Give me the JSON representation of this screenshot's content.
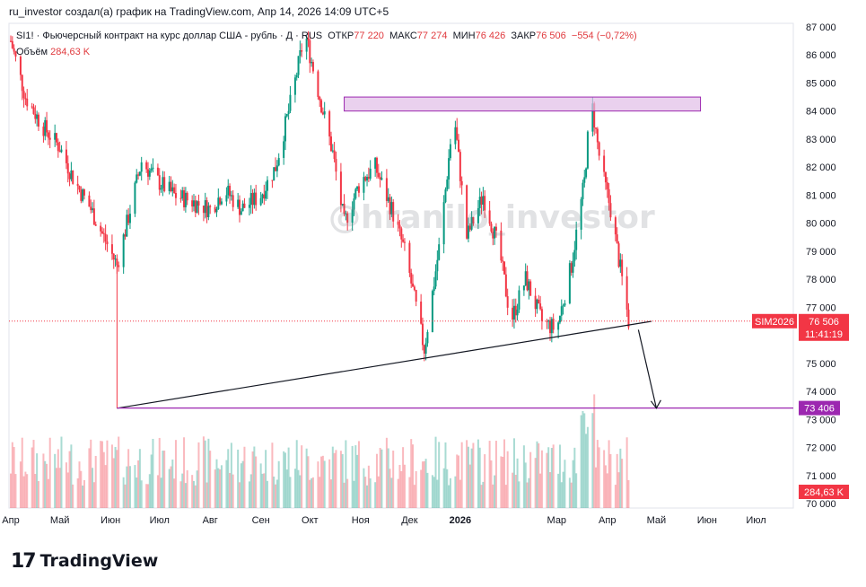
{
  "caption": "ru_investor создал(а) график на TradingView.com, Апр 14, 2026 14:09 UTC+5",
  "legend": {
    "symbol": "SI1! · Фьючерсный контракт на курс доллар США - рубль · Д · RUS",
    "open_label": "ОТКР",
    "open": "77 220",
    "high_label": "МАКС",
    "high": "77 274",
    "low_label": "МИН",
    "low": "76 426",
    "close_label": "ЗАКР",
    "close": "76 506",
    "change": "−554 (−0,72%)"
  },
  "volume_legend": {
    "label": "Объём",
    "value": "284,63 K"
  },
  "watermark": "@hranilo_investor",
  "footer_brand": "TradingView",
  "price_tags": {
    "contract": "SIM2026",
    "last_price": "76 506",
    "countdown": "11:41:19",
    "target_price": "73 406",
    "volume": "284,63 K"
  },
  "colors": {
    "up": "#089981",
    "down": "#f23645",
    "resistance_zone": "#e1bee7",
    "zone_border": "#9c27b0",
    "target_line": "#9c27b0",
    "trend_line": "#131722",
    "tag_red": "#f23645",
    "tag_purple": "#9c27b0"
  },
  "chart_data": {
    "type": "candlestick",
    "y_axis": {
      "min": 70000,
      "max": 87000,
      "ticks": [
        "87 000",
        "86 000",
        "85 000",
        "84 000",
        "83 000",
        "82 000",
        "81 000",
        "80 000",
        "79 000",
        "78 000",
        "77 000",
        "76 000",
        "75 000",
        "74 000",
        "73 000",
        "72 000",
        "71 000",
        "70 000"
      ]
    },
    "x_axis": {
      "labels": [
        "Апр",
        "Май",
        "Июн",
        "Июл",
        "Авг",
        "Сен",
        "Окт",
        "Ноя",
        "Дек",
        "2026",
        "Мар",
        "Апр",
        "Май",
        "Июн",
        "Июл"
      ]
    },
    "close_path": [
      [
        "2025-04-01",
        86500
      ],
      [
        "2025-04-10",
        84500
      ],
      [
        "2025-04-20",
        83500
      ],
      [
        "2025-05-01",
        82700
      ],
      [
        "2025-05-10",
        81500
      ],
      [
        "2025-05-20",
        80500
      ],
      [
        "2025-05-28",
        79500
      ],
      [
        "2025-06-05",
        78500
      ],
      [
        "2025-06-20",
        82200
      ],
      [
        "2025-06-30",
        81500
      ],
      [
        "2025-07-10",
        81000
      ],
      [
        "2025-07-20",
        80800
      ],
      [
        "2025-08-01",
        80500
      ],
      [
        "2025-08-10",
        81200
      ],
      [
        "2025-08-20",
        80500
      ],
      [
        "2025-09-01",
        81000
      ],
      [
        "2025-09-10",
        82000
      ],
      [
        "2025-09-20",
        84500
      ],
      [
        "2025-09-28",
        86800
      ],
      [
        "2025-10-05",
        85000
      ],
      [
        "2025-10-15",
        82500
      ],
      [
        "2025-10-22",
        80000
      ],
      [
        "2025-11-01",
        81500
      ],
      [
        "2025-11-10",
        82000
      ],
      [
        "2025-11-20",
        80500
      ],
      [
        "2025-11-28",
        79000
      ],
      [
        "2025-12-05",
        77000
      ],
      [
        "2025-12-10",
        75500
      ],
      [
        "2025-12-20",
        79500
      ],
      [
        "2025-12-28",
        84000
      ],
      [
        "2026-01-05",
        79500
      ],
      [
        "2026-01-15",
        81000
      ],
      [
        "2026-01-25",
        79000
      ],
      [
        "2026-02-01",
        76500
      ],
      [
        "2026-02-10",
        78000
      ],
      [
        "2026-02-20",
        76500
      ],
      [
        "2026-03-01",
        76200
      ],
      [
        "2026-03-10",
        78500
      ],
      [
        "2026-03-18",
        81500
      ],
      [
        "2026-03-22",
        84500
      ],
      [
        "2026-03-28",
        82000
      ],
      [
        "2026-04-03",
        80500
      ],
      [
        "2026-04-10",
        78000
      ],
      [
        "2026-04-14",
        76506
      ]
    ],
    "resistance_zone": {
      "from": "2025-10-22",
      "to": "2026-05-28",
      "low": 84000,
      "high": 84500
    },
    "trend_line": {
      "points": [
        [
          "2025-06-05",
          73400
        ],
        [
          "2026-04-28",
          76500
        ]
      ]
    },
    "target_level": 73406,
    "last_price": 76506,
    "projection_arrow": {
      "from": [
        "2026-04-20",
        76200
      ],
      "to": [
        "2026-05-01",
        73400
      ]
    },
    "volume": {
      "last": "284,63 K",
      "spike_month": "Мар"
    }
  }
}
